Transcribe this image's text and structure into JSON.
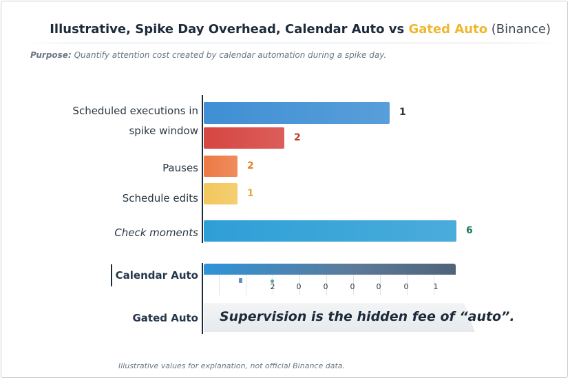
{
  "title": {
    "main": "Illustrative, Spike Day Overhead, Calendar Auto vs ",
    "accent": "Gated Auto",
    "suffix": " (Binance)",
    "accent_color": "#efb72e"
  },
  "purpose": {
    "label": "Purpose:",
    "text": " Quantify attention cost created by calendar automation during a spike day."
  },
  "chart_data": {
    "type": "bar",
    "orientation": "horizontal",
    "categories": [
      "Scheduled executions in spike window",
      "Pauses",
      "Schedule edits",
      "Check moments"
    ],
    "bars": [
      {
        "category": "Scheduled executions in spike window",
        "value": 1,
        "label": "1",
        "color": "#3f8fd4",
        "label_color": "#2b3642"
      },
      {
        "category": "Scheduled executions in spike window",
        "value": 2,
        "label": "2",
        "color": "#d64541",
        "label_color": "#c0392b"
      },
      {
        "category": "Pauses",
        "value": 2,
        "label": "2",
        "color": "#ec7a44",
        "label_color": "#e67e22"
      },
      {
        "category": "Schedule edits",
        "value": 1,
        "label": "1",
        "color": "#f2c75c",
        "label_color": "#e0b030"
      },
      {
        "category": "Check moments",
        "value": 6,
        "label": "6",
        "color": "#2e9fd6",
        "label_color": "#1e7a5a"
      }
    ],
    "category_lines": [
      "Scheduled executions in",
      "spike window"
    ],
    "xlim": [
      0,
      6
    ],
    "rows": [
      "Calendar Auto",
      "Gated Auto"
    ],
    "calendar_auto_values": [
      "2",
      "0",
      "0",
      "0",
      "0",
      "0",
      "1"
    ],
    "grid": false,
    "legend": "none"
  },
  "callout": "Supervision is the hidden fee of “auto”.",
  "footnote": "Illustrative values for explanation, not official Binance data."
}
